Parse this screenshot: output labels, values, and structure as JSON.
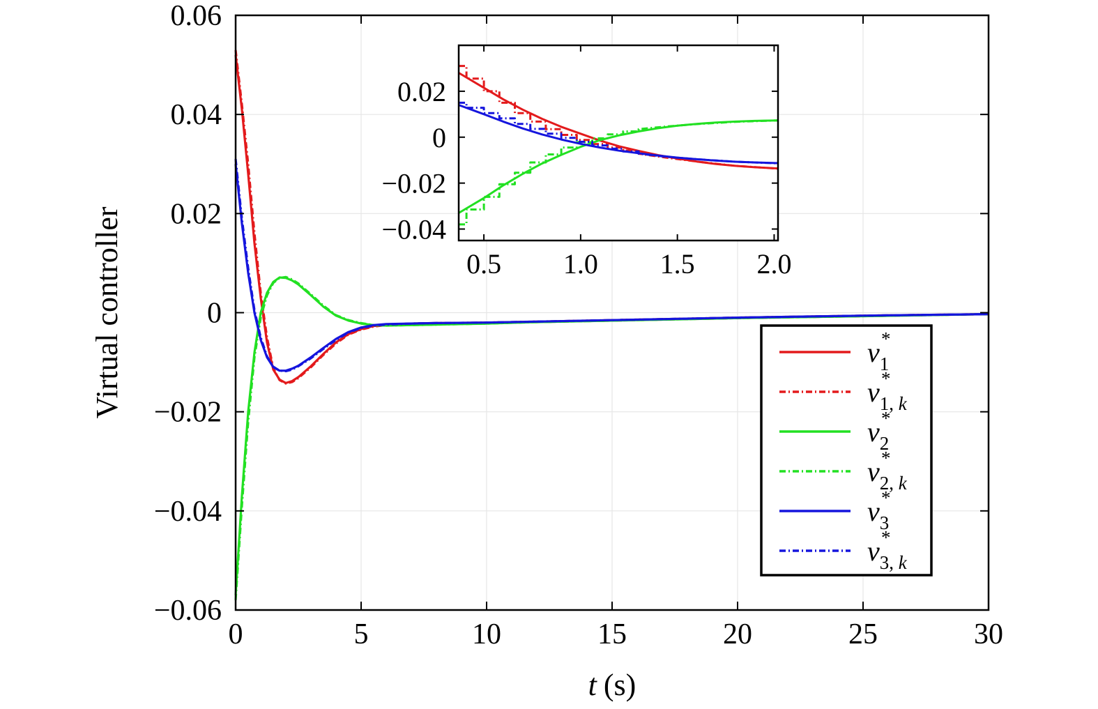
{
  "chart_data": [
    {
      "type": "line",
      "xlabel_var": "t",
      "xlabel_unit": "(s)",
      "ylabel": "Virtual controller",
      "xlim": [
        0,
        30
      ],
      "ylim": [
        -0.06,
        0.06
      ],
      "xticks": [
        0,
        5,
        10,
        15,
        20,
        25,
        30
      ],
      "xtick_labels": [
        "0",
        "5",
        "10",
        "15",
        "20",
        "25",
        "30"
      ],
      "yticks": [
        -0.06,
        -0.04,
        -0.02,
        0,
        0.02,
        0.04,
        0.06
      ],
      "ytick_labels": [
        "−0.06",
        "−0.04",
        "−0.02",
        "0",
        "0.02",
        "0.04",
        "0.06"
      ],
      "grid": true,
      "legend_position": "right",
      "series": [
        {
          "name": "v1*",
          "sym": "v",
          "sub": "1",
          "sup": "*",
          "color": "#e31a1c",
          "style": "solid",
          "x": [
            0,
            0.25,
            0.5,
            0.75,
            1.0,
            1.25,
            1.5,
            1.75,
            2.0,
            2.25,
            2.5,
            3.0,
            3.5,
            4.0,
            4.5,
            5.0,
            5.5,
            6.0,
            7.0,
            8.0,
            10.0,
            12.0,
            15.0,
            20.0,
            25.0,
            30.0
          ],
          "y": [
            0.052,
            0.041,
            0.028,
            0.014,
            0.003,
            -0.006,
            -0.0115,
            -0.0135,
            -0.0142,
            -0.0138,
            -0.013,
            -0.0108,
            -0.0083,
            -0.006,
            -0.0043,
            -0.0033,
            -0.0027,
            -0.0024,
            -0.0022,
            -0.0021,
            -0.002,
            -0.0018,
            -0.0015,
            -0.001,
            -0.0006,
            -0.0003
          ]
        },
        {
          "name": "v1,k*",
          "sym": "v",
          "sub": "1, k",
          "sup": "*",
          "color": "#e31a1c",
          "style": "dashdot",
          "x": [
            0,
            0.25,
            0.5,
            0.75,
            1.0,
            1.25,
            1.5,
            1.75,
            2.0,
            2.25,
            2.5,
            3.0,
            3.5,
            4.0,
            4.5,
            5.0,
            5.5,
            6.0,
            7.0,
            8.0,
            10.0,
            12.0,
            15.0,
            20.0,
            25.0,
            30.0
          ],
          "y": [
            0.053,
            0.042,
            0.03,
            0.016,
            0.004,
            -0.005,
            -0.0112,
            -0.0136,
            -0.0143,
            -0.014,
            -0.0132,
            -0.011,
            -0.0085,
            -0.0062,
            -0.0044,
            -0.0034,
            -0.0028,
            -0.0025,
            -0.0023,
            -0.0022,
            -0.0021,
            -0.0019,
            -0.0016,
            -0.0011,
            -0.0007,
            -0.0003
          ]
        },
        {
          "name": "v2*",
          "sym": "v",
          "sub": "2",
          "sup": "*",
          "color": "#22e022",
          "style": "solid",
          "x": [
            0,
            0.25,
            0.5,
            0.75,
            1.0,
            1.25,
            1.5,
            1.75,
            2.0,
            2.25,
            2.5,
            3.0,
            3.5,
            4.0,
            4.5,
            5.0,
            5.5,
            6.0,
            7.0,
            8.0,
            10.0,
            12.0,
            15.0,
            20.0,
            25.0,
            30.0
          ],
          "y": [
            -0.057,
            -0.037,
            -0.02,
            -0.008,
            0.0,
            0.004,
            0.0062,
            0.0071,
            0.007,
            0.0065,
            0.0057,
            0.0035,
            0.0012,
            -0.0006,
            -0.0016,
            -0.0022,
            -0.0025,
            -0.0026,
            -0.0025,
            -0.0024,
            -0.0022,
            -0.0019,
            -0.0016,
            -0.0011,
            -0.0007,
            -0.0003
          ]
        },
        {
          "name": "v2,k*",
          "sym": "v",
          "sub": "2, k",
          "sup": "*",
          "color": "#22e022",
          "style": "dashdot",
          "x": [
            0,
            0.25,
            0.5,
            0.75,
            1.0,
            1.25,
            1.5,
            1.75,
            2.0,
            2.25,
            2.5,
            3.0,
            3.5,
            4.0,
            4.5,
            5.0,
            5.5,
            6.0,
            7.0,
            8.0,
            10.0,
            12.0,
            15.0,
            20.0,
            25.0,
            30.0
          ],
          "y": [
            -0.058,
            -0.039,
            -0.022,
            -0.009,
            -0.001,
            0.0035,
            0.006,
            0.007,
            0.0072,
            0.0067,
            0.0059,
            0.0037,
            0.0014,
            -0.0005,
            -0.0015,
            -0.0021,
            -0.0025,
            -0.0026,
            -0.0025,
            -0.0024,
            -0.0022,
            -0.0019,
            -0.0016,
            -0.0011,
            -0.0007,
            -0.0003
          ]
        },
        {
          "name": "v3*",
          "sym": "v",
          "sub": "3",
          "sup": "*",
          "color": "#1515dd",
          "style": "solid",
          "x": [
            0,
            0.25,
            0.5,
            0.75,
            1.0,
            1.25,
            1.5,
            1.75,
            2.0,
            2.25,
            2.5,
            3.0,
            3.5,
            4.0,
            4.5,
            5.0,
            5.5,
            6.0,
            7.0,
            8.0,
            10.0,
            12.0,
            15.0,
            20.0,
            25.0,
            30.0
          ],
          "y": [
            0.03,
            0.018,
            0.008,
            0.0,
            -0.0055,
            -0.009,
            -0.011,
            -0.0117,
            -0.0117,
            -0.0113,
            -0.0107,
            -0.009,
            -0.0071,
            -0.0053,
            -0.0039,
            -0.003,
            -0.0025,
            -0.0023,
            -0.0022,
            -0.0021,
            -0.002,
            -0.0018,
            -0.0015,
            -0.001,
            -0.0006,
            -0.0003
          ]
        },
        {
          "name": "v3,k*",
          "sym": "v",
          "sub": "3, k",
          "sup": "*",
          "color": "#1515dd",
          "style": "dashdot",
          "x": [
            0,
            0.25,
            0.5,
            0.75,
            1.0,
            1.25,
            1.5,
            1.75,
            2.0,
            2.25,
            2.5,
            3.0,
            3.5,
            4.0,
            4.5,
            5.0,
            5.5,
            6.0,
            7.0,
            8.0,
            10.0,
            12.0,
            15.0,
            20.0,
            25.0,
            30.0
          ],
          "y": [
            0.031,
            0.019,
            0.009,
            0.0005,
            -0.005,
            -0.0088,
            -0.0109,
            -0.0117,
            -0.0118,
            -0.0115,
            -0.0108,
            -0.0092,
            -0.0073,
            -0.0055,
            -0.004,
            -0.0031,
            -0.0026,
            -0.0024,
            -0.0022,
            -0.0021,
            -0.002,
            -0.0018,
            -0.0015,
            -0.001,
            -0.0006,
            -0.0003
          ]
        }
      ]
    },
    {
      "type": "line",
      "role": "inset",
      "xlim": [
        0.37,
        2.02
      ],
      "ylim": [
        -0.045,
        0.04
      ],
      "xticks": [
        0.5,
        1.0,
        1.5,
        2.0
      ],
      "xtick_labels": [
        "0.5",
        "1.0",
        "1.5",
        "2.0"
      ],
      "yticks": [
        -0.04,
        -0.02,
        0,
        0.02
      ],
      "ytick_labels": [
        "−0.04",
        "−0.02",
        "0",
        "0.02"
      ],
      "grid": false,
      "series": [
        {
          "name": "v1*",
          "color": "#e31a1c",
          "style": "solid",
          "x": [
            0.37,
            0.5,
            0.6,
            0.7,
            0.8,
            0.9,
            1.0,
            1.1,
            1.2,
            1.3,
            1.4,
            1.5,
            1.6,
            1.7,
            1.8,
            1.9,
            2.02
          ],
          "y": [
            0.028,
            0.0215,
            0.0165,
            0.012,
            0.008,
            0.0045,
            0.0015,
            -0.0015,
            -0.004,
            -0.006,
            -0.0078,
            -0.0093,
            -0.0106,
            -0.0117,
            -0.0125,
            -0.0131,
            -0.0136
          ]
        },
        {
          "name": "v1,k*",
          "color": "#e31a1c",
          "style": "dashdot",
          "x": [
            0.37,
            0.41,
            0.41,
            0.5,
            0.5,
            0.58,
            0.58,
            0.66,
            0.66,
            0.74,
            0.74,
            0.82,
            0.82,
            0.9,
            0.9,
            0.98,
            0.98,
            1.06,
            1.06,
            1.14,
            1.14,
            1.22,
            1.22,
            1.3,
            1.3,
            1.45,
            1.6,
            1.8,
            2.02
          ],
          "y": [
            0.031,
            0.031,
            0.0255,
            0.0255,
            0.02,
            0.02,
            0.015,
            0.015,
            0.0105,
            0.0105,
            0.0068,
            0.0068,
            0.0035,
            0.0035,
            0.001,
            0.001,
            -0.0012,
            -0.0012,
            -0.003,
            -0.003,
            -0.0045,
            -0.0045,
            -0.0058,
            -0.0058,
            -0.0072,
            -0.009,
            -0.0106,
            -0.0125,
            -0.0137
          ]
        },
        {
          "name": "v2*",
          "color": "#22e022",
          "style": "solid",
          "x": [
            0.37,
            0.5,
            0.6,
            0.7,
            0.8,
            0.9,
            1.0,
            1.1,
            1.2,
            1.3,
            1.4,
            1.5,
            1.6,
            1.7,
            1.8,
            1.9,
            2.02
          ],
          "y": [
            -0.033,
            -0.0265,
            -0.021,
            -0.016,
            -0.0115,
            -0.0077,
            -0.0042,
            -0.0013,
            0.0008,
            0.0025,
            0.0039,
            0.005,
            0.0058,
            0.0064,
            0.0068,
            0.0071,
            0.0073
          ]
        },
        {
          "name": "v2,k*",
          "color": "#22e022",
          "style": "dashdot",
          "x": [
            0.37,
            0.41,
            0.41,
            0.5,
            0.5,
            0.58,
            0.58,
            0.66,
            0.66,
            0.74,
            0.74,
            0.82,
            0.82,
            0.9,
            0.9,
            0.98,
            0.98,
            1.06,
            1.06,
            1.14,
            1.14,
            1.22,
            1.22,
            1.3,
            1.3,
            1.45,
            1.6,
            1.8,
            2.02
          ],
          "y": [
            -0.038,
            -0.038,
            -0.0315,
            -0.0315,
            -0.026,
            -0.026,
            -0.0205,
            -0.0205,
            -0.0155,
            -0.0155,
            -0.011,
            -0.011,
            -0.0075,
            -0.0075,
            -0.0045,
            -0.0045,
            -0.0022,
            -0.0022,
            -0.0005,
            -0.0005,
            0.0012,
            0.0012,
            0.0025,
            0.0025,
            0.0035,
            0.0047,
            0.0057,
            0.0067,
            0.0073
          ]
        },
        {
          "name": "v3*",
          "color": "#1515dd",
          "style": "solid",
          "x": [
            0.37,
            0.5,
            0.6,
            0.7,
            0.8,
            0.9,
            1.0,
            1.1,
            1.2,
            1.3,
            1.4,
            1.5,
            1.6,
            1.7,
            1.8,
            1.9,
            2.02
          ],
          "y": [
            0.014,
            0.01,
            0.0068,
            0.0038,
            0.0012,
            -0.001,
            -0.0029,
            -0.0045,
            -0.0059,
            -0.007,
            -0.008,
            -0.0089,
            -0.0096,
            -0.0102,
            -0.0107,
            -0.011,
            -0.0113
          ]
        },
        {
          "name": "v3,k*",
          "color": "#1515dd",
          "style": "dashdot",
          "x": [
            0.37,
            0.41,
            0.41,
            0.5,
            0.5,
            0.58,
            0.58,
            0.66,
            0.66,
            0.74,
            0.74,
            0.82,
            0.82,
            0.9,
            0.9,
            0.98,
            0.98,
            1.06,
            1.06,
            1.14,
            1.14,
            1.22,
            1.22,
            1.3,
            1.3,
            1.45,
            1.6,
            1.8,
            2.02
          ],
          "y": [
            0.015,
            0.015,
            0.0128,
            0.0128,
            0.0105,
            0.0105,
            0.0082,
            0.0082,
            0.0058,
            0.0058,
            0.0036,
            0.0036,
            0.0015,
            0.0015,
            -0.0003,
            -0.0003,
            -0.002,
            -0.002,
            -0.0036,
            -0.0036,
            -0.005,
            -0.005,
            -0.0062,
            -0.0062,
            -0.0072,
            -0.0086,
            -0.0096,
            -0.0107,
            -0.0114
          ]
        }
      ]
    }
  ]
}
